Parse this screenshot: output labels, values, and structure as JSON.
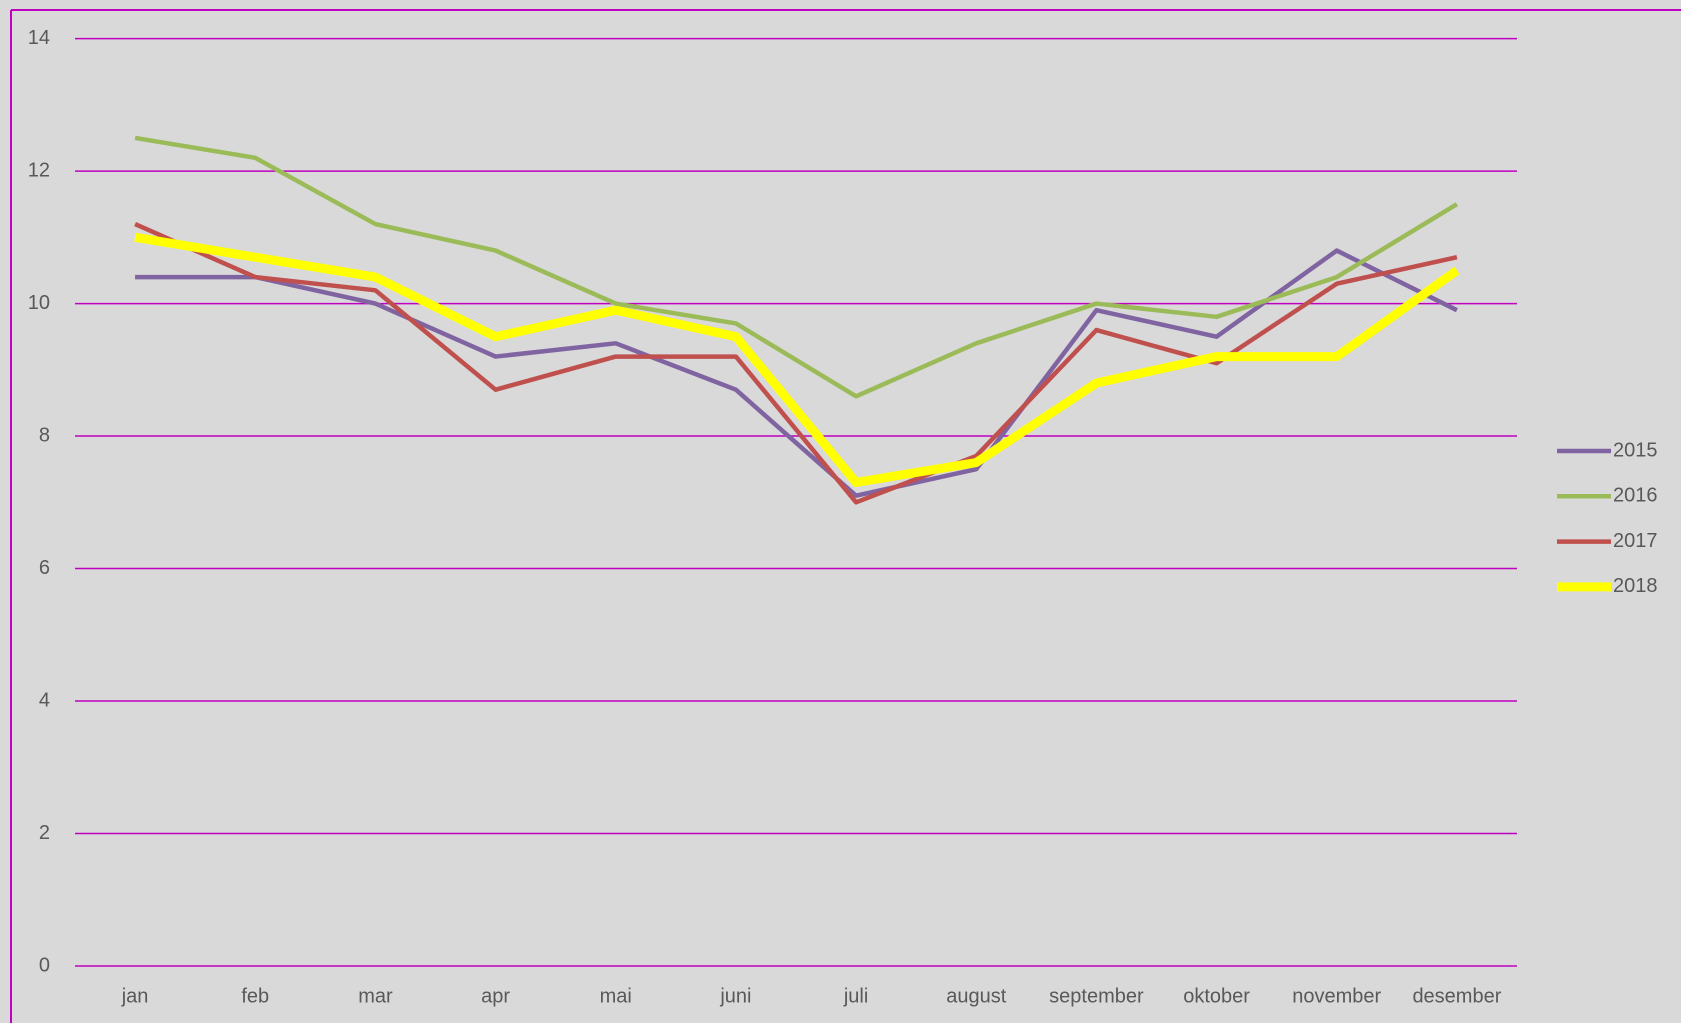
{
  "chart_data": {
    "type": "line",
    "categories": [
      "jan",
      "feb",
      "mar",
      "apr",
      "mai",
      "juni",
      "juli",
      "august",
      "september",
      "oktober",
      "november",
      "desember"
    ],
    "series": [
      {
        "name": "2015",
        "color": "#8064a2",
        "width": 4.5,
        "values": [
          10.4,
          10.4,
          10.0,
          9.2,
          9.4,
          8.7,
          7.1,
          7.5,
          9.9,
          9.5,
          10.8,
          9.9
        ]
      },
      {
        "name": "2016",
        "color": "#9bbb59",
        "width": 4.5,
        "values": [
          12.5,
          12.2,
          11.2,
          10.8,
          10.0,
          9.7,
          8.6,
          9.4,
          10.0,
          9.8,
          10.4,
          11.5
        ]
      },
      {
        "name": "2017",
        "color": "#c0504d",
        "width": 4.5,
        "values": [
          11.2,
          10.4,
          10.2,
          8.7,
          9.2,
          9.2,
          7.0,
          7.7,
          9.6,
          9.1,
          10.3,
          10.7
        ]
      },
      {
        "name": "2018",
        "color": "#ffff00",
        "width": 9,
        "values": [
          11.0,
          10.7,
          10.4,
          9.5,
          9.9,
          9.5,
          7.3,
          7.6,
          8.8,
          9.2,
          9.2,
          10.5
        ]
      }
    ],
    "ylim": [
      0,
      14
    ],
    "yticks": [
      0,
      2,
      4,
      6,
      8,
      10,
      12,
      14
    ],
    "grid": true,
    "grid_color": "#c000c0",
    "legend": "right"
  }
}
